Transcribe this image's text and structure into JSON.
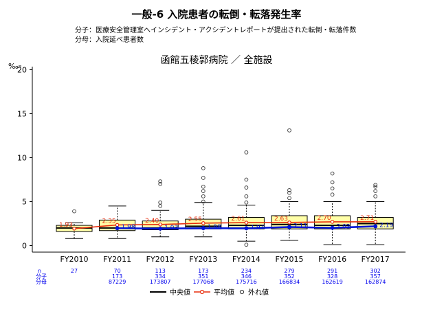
{
  "title": "一般-6 入院患者の転倒・転落発生率",
  "definitions": {
    "numerator": "分子：医療安全管理室へインシデント・アクシデントレポートが提出された転倒・転落件数",
    "denominator": "分母：入院延べ患者数"
  },
  "chart_data": {
    "type": "box",
    "subtitle": "函館五稜郭病院 ／ 全施設",
    "ylabel": "‰",
    "ylim": [
      0,
      20
    ],
    "yticks": [
      0,
      5,
      10,
      15,
      20
    ],
    "categories": [
      "FY2010",
      "FY2011",
      "FY2012",
      "FY2013",
      "FY2014",
      "FY2015",
      "FY2016",
      "FY2017"
    ],
    "boxes": [
      {
        "q1": 1.6,
        "median": 2.0,
        "q3": 2.3,
        "whisker_low": 0.8,
        "whisker_high": 2.6,
        "outliers": [
          3.9
        ]
      },
      {
        "q1": 1.7,
        "median": 2.0,
        "q3": 2.9,
        "whisker_low": 0.8,
        "whisker_high": 4.5,
        "outliers": []
      },
      {
        "q1": 1.8,
        "median": 2.0,
        "q3": 2.8,
        "whisker_low": 1.0,
        "whisker_high": 4.0,
        "outliers": [
          4.5,
          4.9,
          7.0,
          7.3
        ]
      },
      {
        "q1": 1.9,
        "median": 2.2,
        "q3": 3.0,
        "whisker_low": 1.0,
        "whisker_high": 4.9,
        "outliers": [
          5.0,
          5.6,
          6.2,
          6.7,
          7.7,
          8.8
        ]
      },
      {
        "q1": 1.9,
        "median": 2.3,
        "q3": 3.2,
        "whisker_low": 0.5,
        "whisker_high": 4.6,
        "outliers": [
          0.1,
          4.9,
          5.6,
          6.6,
          7.5,
          10.6
        ]
      },
      {
        "q1": 1.9,
        "median": 2.4,
        "q3": 3.4,
        "whisker_low": 0.6,
        "whisker_high": 5.0,
        "outliers": [
          5.4,
          6.0,
          6.3,
          13.1
        ]
      },
      {
        "q1": 1.9,
        "median": 2.3,
        "q3": 3.4,
        "whisker_low": 0.1,
        "whisker_high": 5.0,
        "outliers": [
          5.8,
          6.5,
          7.2,
          8.2
        ]
      },
      {
        "q1": 1.9,
        "median": 2.5,
        "q3": 3.2,
        "whisker_low": 0.1,
        "whisker_high": 5.0,
        "outliers": [
          5.6,
          6.2,
          6.7,
          6.9
        ]
      }
    ],
    "hospital_values": [
      1.95,
      1.98,
      1.93,
      1.98,
      1.97,
      2.11,
      2.02,
      2.19
    ],
    "hospital_labels": [
      "",
      "1.98",
      "1.93",
      "1.98",
      "1.97",
      "2.11",
      "2.02",
      "2.19"
    ],
    "mean_values": [
      1.93,
      2.35,
      2.4,
      2.55,
      2.61,
      2.63,
      2.7,
      2.71
    ],
    "mean_labels": [
      "1.93",
      "2.35",
      "2.40",
      "2.55",
      "2.61",
      "2.63",
      "2.70",
      "2.71"
    ],
    "table": {
      "row_labels": [
        "n",
        "分子",
        "分母"
      ],
      "n": [
        "27",
        "70",
        "113",
        "173",
        "234",
        "279",
        "291",
        "302"
      ],
      "numerator": [
        "",
        "173",
        "334",
        "351",
        "346",
        "352",
        "328",
        "357"
      ],
      "denominator": [
        "",
        "87229",
        "173807",
        "177068",
        "175716",
        "166834",
        "162619",
        "162874"
      ]
    },
    "legend": [
      "中央値",
      "平均値",
      "外れ値"
    ],
    "colors": {
      "box_fill": "#ffffa8",
      "median": "#000000",
      "mean": "#e82d0c",
      "hospital": "#0015d6",
      "table_text": "#0000ee",
      "outlier": "#333333"
    }
  }
}
